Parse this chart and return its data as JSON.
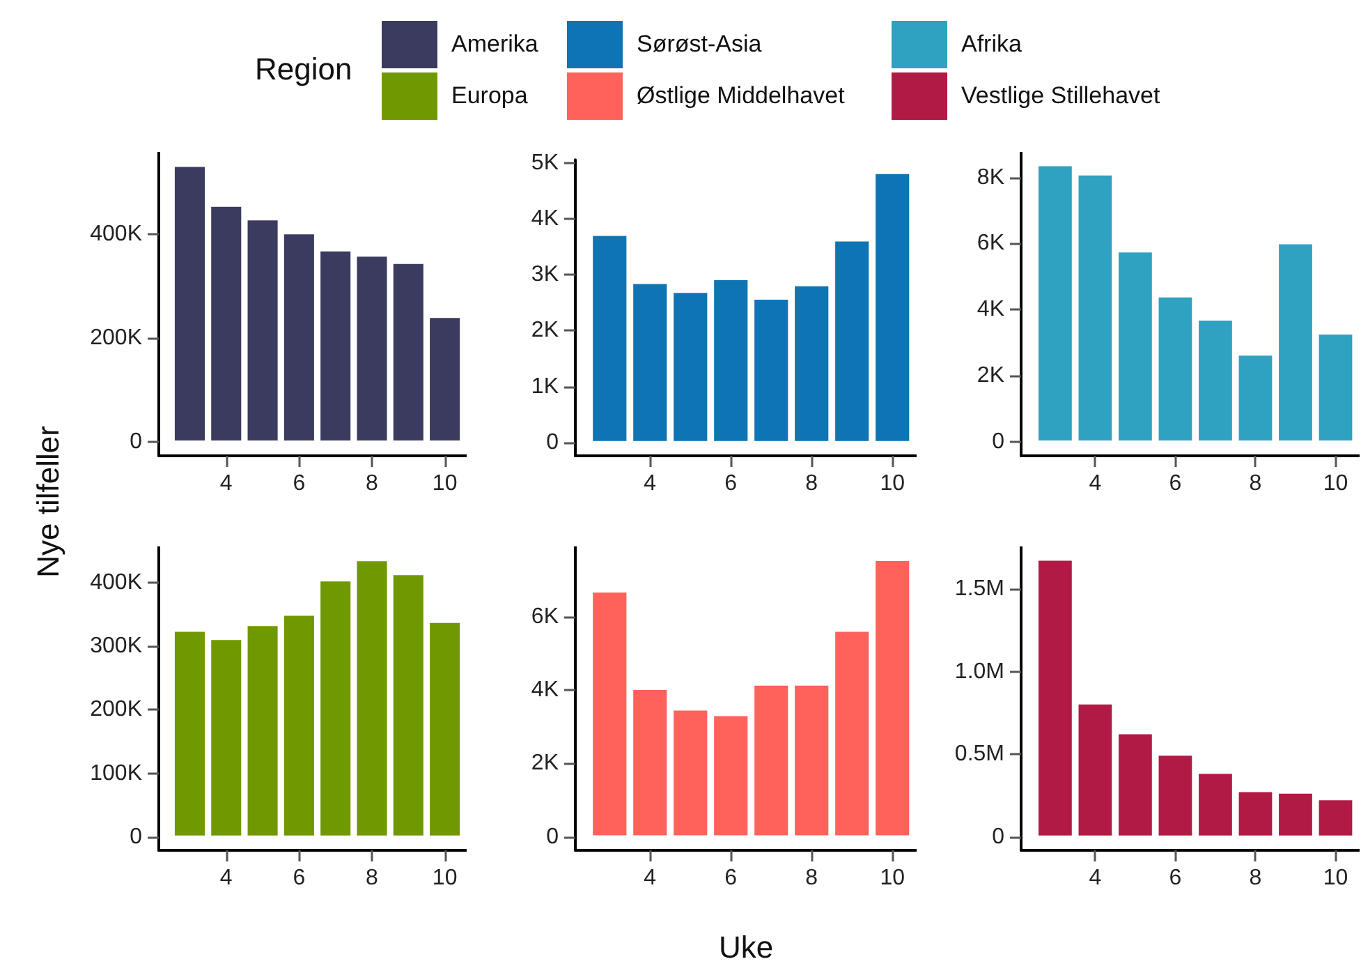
{
  "chart_data": [
    {
      "type": "bar",
      "ylabel": "Nye tilfeller",
      "legend": "top",
      "legend_title": "Region",
      "x": [
        3,
        4,
        5,
        6,
        7,
        8,
        9,
        10
      ],
      "xlim": [
        2.15,
        10.6
      ],
      "xticks": [
        4,
        6,
        8,
        10
      ],
      "ylim": [
        -27000,
        558000
      ],
      "yticks": [
        {
          "value": 0,
          "label": "0"
        },
        {
          "value": 200000,
          "label": "200K"
        },
        {
          "value": 400000,
          "label": "400K"
        }
      ],
      "series": [
        {
          "name": "Amerika",
          "color": "#3a3b5f",
          "values": [
            532000,
            455000,
            429000,
            402000,
            369000,
            359000,
            345000,
            241000
          ]
        }
      ]
    },
    {
      "type": "bar",
      "legend": "top",
      "x": [
        3,
        4,
        5,
        6,
        7,
        8,
        9,
        10
      ],
      "xlim": [
        2.15,
        10.6
      ],
      "xticks": [
        4,
        6,
        8,
        10
      ],
      "ylim": [
        -240,
        5060
      ],
      "yticks": [
        {
          "value": 0,
          "label": "0"
        },
        {
          "value": 1000,
          "label": "1K"
        },
        {
          "value": 2000,
          "label": "2K"
        },
        {
          "value": 3000,
          "label": "3K"
        },
        {
          "value": 4000,
          "label": "4K"
        },
        {
          "value": 5000,
          "label": "5K"
        }
      ],
      "series": [
        {
          "name": "Sørøst-Asia",
          "color": "#0f74b3",
          "values": [
            3720,
            2860,
            2700,
            2930,
            2580,
            2820,
            3620,
            4830
          ]
        }
      ]
    },
    {
      "type": "bar",
      "legend": "top",
      "x": [
        3,
        4,
        5,
        6,
        7,
        8,
        9,
        10
      ],
      "xlim": [
        2.15,
        10.6
      ],
      "xticks": [
        4,
        6,
        8,
        10
      ],
      "ylim": [
        -420,
        8770
      ],
      "yticks": [
        {
          "value": 0,
          "label": "0"
        },
        {
          "value": 2000,
          "label": "2K"
        },
        {
          "value": 4000,
          "label": "4K"
        },
        {
          "value": 6000,
          "label": "6K"
        },
        {
          "value": 8000,
          "label": "8K"
        }
      ],
      "series": [
        {
          "name": "Afrika",
          "color": "#2fa1c1",
          "values": [
            8380,
            8100,
            5770,
            4410,
            3710,
            2650,
            6020,
            3290
          ]
        }
      ]
    },
    {
      "type": "bar",
      "legend": "top",
      "x": [
        3,
        4,
        5,
        6,
        7,
        8,
        9,
        10
      ],
      "xlim": [
        2.15,
        10.6
      ],
      "xticks": [
        4,
        6,
        8,
        10
      ],
      "ylim": [
        -21000,
        457000
      ],
      "yticks": [
        {
          "value": 0,
          "label": "0"
        },
        {
          "value": 100000,
          "label": "100K"
        },
        {
          "value": 200000,
          "label": "200K"
        },
        {
          "value": 300000,
          "label": "300K"
        },
        {
          "value": 400000,
          "label": "400K"
        }
      ],
      "series": [
        {
          "name": "Europa",
          "color": "#709800",
          "values": [
            325000,
            312000,
            334000,
            350000,
            404000,
            436000,
            414000,
            339000
          ]
        }
      ]
    },
    {
      "type": "bar",
      "xlabel": "Uke",
      "legend": "top",
      "x": [
        3,
        4,
        5,
        6,
        7,
        8,
        9,
        10
      ],
      "xlim": [
        2.15,
        10.6
      ],
      "xticks": [
        4,
        6,
        8,
        10
      ],
      "ylim": [
        -370,
        7920
      ],
      "yticks": [
        {
          "value": 0,
          "label": "0"
        },
        {
          "value": 2000,
          "label": "2K"
        },
        {
          "value": 4000,
          "label": "4K"
        },
        {
          "value": 6000,
          "label": "6K"
        }
      ],
      "series": [
        {
          "name": "Østlige Middelhavet",
          "color": "#fe625a",
          "values": [
            6700,
            4040,
            3480,
            3330,
            4160,
            4160,
            5630,
            7560
          ]
        }
      ]
    },
    {
      "type": "bar",
      "legend": "top",
      "x": [
        3,
        4,
        5,
        6,
        7,
        8,
        9,
        10
      ],
      "xlim": [
        2.15,
        10.6
      ],
      "xticks": [
        4,
        6,
        8,
        10
      ],
      "ylim": [
        -81000,
        1758000
      ],
      "yticks": [
        {
          "value": 0,
          "label": "0"
        },
        {
          "value": 500000,
          "label": "0.5M"
        },
        {
          "value": 1000000,
          "label": "1.0M"
        },
        {
          "value": 1500000,
          "label": "1.5M"
        }
      ],
      "series": [
        {
          "name": "Vestlige Stillehavet",
          "color": "#b01a44",
          "values": [
            1680000,
            810000,
            630000,
            500000,
            390000,
            280000,
            270000,
            230000
          ]
        }
      ]
    }
  ]
}
